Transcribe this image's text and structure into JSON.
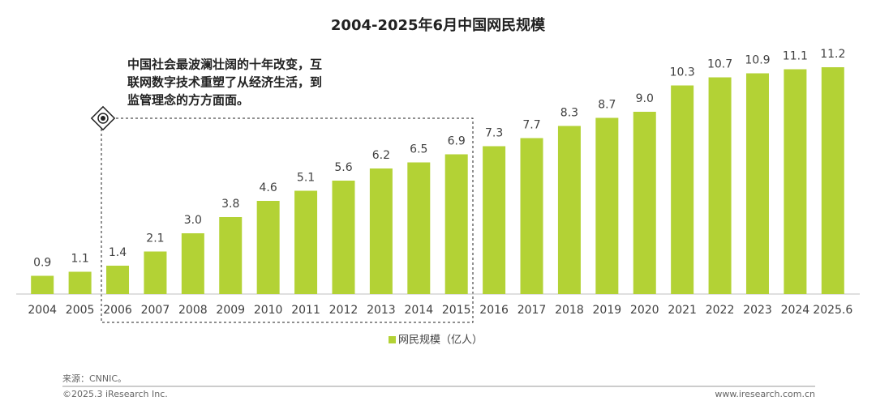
{
  "chart_data": {
    "type": "bar",
    "title": "2004-2025年6月中国网民规模",
    "categories": [
      "2004",
      "2005",
      "2006",
      "2007",
      "2008",
      "2009",
      "2010",
      "2011",
      "2012",
      "2013",
      "2014",
      "2015",
      "2016",
      "2017",
      "2018",
      "2019",
      "2020",
      "2021",
      "2022",
      "2023",
      "2024",
      "2025.6"
    ],
    "series": [
      {
        "name": "网民规模（亿人）",
        "color": "#b3d235",
        "values": [
          0.9,
          1.1,
          1.4,
          2.1,
          3.0,
          3.8,
          4.6,
          5.1,
          5.6,
          6.2,
          6.5,
          6.9,
          7.3,
          7.7,
          8.3,
          8.7,
          9.0,
          10.3,
          10.7,
          10.9,
          11.1,
          11.2
        ],
        "value_labels": [
          "0.9",
          "1.1",
          "1.4",
          "2.1",
          "3.0",
          "3.8",
          "4.6",
          "5.1",
          "5.6",
          "6.2",
          "6.5",
          "6.9",
          "7.3",
          "7.7",
          "8.3",
          "8.7",
          "9.0",
          "10.3",
          "10.7",
          "10.9",
          "11.1",
          "11.2"
        ]
      }
    ],
    "ylim": [
      0,
      12
    ],
    "annotation": [
      "中国社会最波澜壮阔的十年改变，互",
      "联网数字技术重塑了从经济生活，到",
      "监管理念的方方面面。"
    ],
    "source": "来源：CNNIC。",
    "copyright": "©2025.3 iResearch Inc.",
    "website": "www.iresearch.com.cn"
  }
}
